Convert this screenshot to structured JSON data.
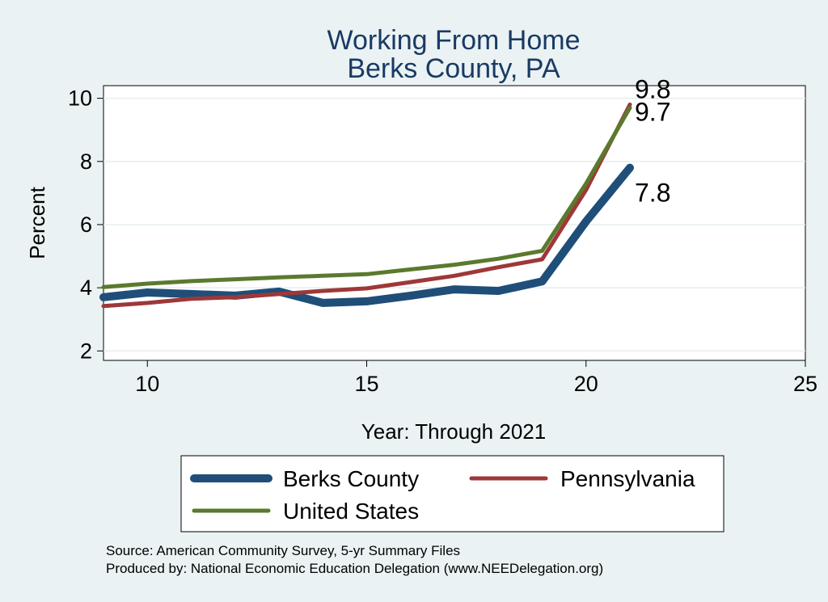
{
  "chart_data": {
    "type": "line",
    "title": [
      "Working From Home",
      "Berks County, PA"
    ],
    "xlabel": "Year: Through 2021",
    "ylabel": "Percent",
    "xlim": [
      9,
      25
    ],
    "ylim": [
      1.7,
      10.4
    ],
    "xticks": [
      10,
      15,
      20,
      25
    ],
    "yticks": [
      2,
      4,
      6,
      8,
      10
    ],
    "grid": true,
    "legend_position": "bottom",
    "series": [
      {
        "name": "Berks County",
        "color": "#1f4e79",
        "width": "thick",
        "x": [
          9,
          10,
          11,
          12,
          13,
          14,
          15,
          16,
          17,
          18,
          19,
          20,
          21
        ],
        "y": [
          3.7,
          3.85,
          3.8,
          3.75,
          3.88,
          3.52,
          3.57,
          3.75,
          3.95,
          3.9,
          4.2,
          6.1,
          7.8
        ],
        "end_label": "7.8"
      },
      {
        "name": "Pennsylvania",
        "color": "#9e3838",
        "width": "medium",
        "x": [
          9,
          10,
          11,
          12,
          13,
          14,
          15,
          16,
          17,
          18,
          19,
          20,
          21
        ],
        "y": [
          3.42,
          3.52,
          3.65,
          3.7,
          3.8,
          3.9,
          3.98,
          4.18,
          4.38,
          4.65,
          4.9,
          7.1,
          9.8
        ],
        "end_label": "9.8"
      },
      {
        "name": "United States",
        "color": "#5a7a2e",
        "width": "medium",
        "x": [
          9,
          10,
          11,
          12,
          13,
          14,
          15,
          16,
          17,
          18,
          19,
          20,
          21
        ],
        "y": [
          4.02,
          4.13,
          4.21,
          4.27,
          4.33,
          4.38,
          4.43,
          4.58,
          4.73,
          4.92,
          5.17,
          7.3,
          9.7
        ],
        "end_label": "9.7"
      }
    ],
    "source_lines": [
      "Source: American Community Survey, 5-yr Summary Files",
      "Produced by: National Economic Education Delegation (www.NEEDelegation.org)"
    ]
  }
}
